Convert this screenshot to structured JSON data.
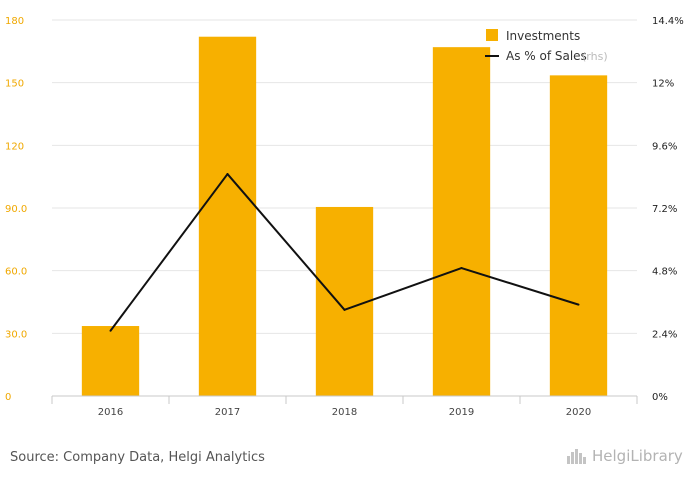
{
  "chart_data": {
    "type": "bar+line",
    "categories": [
      "2016",
      "2017",
      "2018",
      "2019",
      "2020"
    ],
    "series": [
      {
        "name": "Investments",
        "type": "bar",
        "axis": "left",
        "values": [
          33.5,
          172,
          90.5,
          167,
          153.5
        ]
      },
      {
        "name": "As % of Sales",
        "note": "(rhs)",
        "type": "line",
        "axis": "right",
        "values": [
          2.5,
          8.5,
          3.3,
          4.9,
          3.5
        ]
      }
    ],
    "left_axis": {
      "min": 0,
      "max": 180,
      "ticks": [
        0,
        30,
        60,
        90,
        120,
        150,
        180
      ],
      "tick_labels": [
        "0",
        "30.0",
        "60.0",
        "90.0",
        "120",
        "150",
        "180"
      ]
    },
    "right_axis": {
      "min": 0,
      "max": 14.4,
      "ticks": [
        0,
        2.4,
        4.8,
        7.2,
        9.6,
        12,
        14.4
      ],
      "tick_labels": [
        "0%",
        "2.4%",
        "4.8%",
        "7.2%",
        "9.6%",
        "12%",
        "14.4%"
      ]
    },
    "title": "",
    "xlabel": "",
    "ylabel": "",
    "grid": "horizontal",
    "legend_position": "top-right",
    "colors": {
      "bar": "#f7b000",
      "line": "#111111",
      "grid": "#e6e6e6"
    }
  },
  "footer": {
    "source": "Source: Company Data, Helgi Analytics",
    "brand": "HelgiLibrary",
    "brand_icon": "building-chart-icon"
  }
}
